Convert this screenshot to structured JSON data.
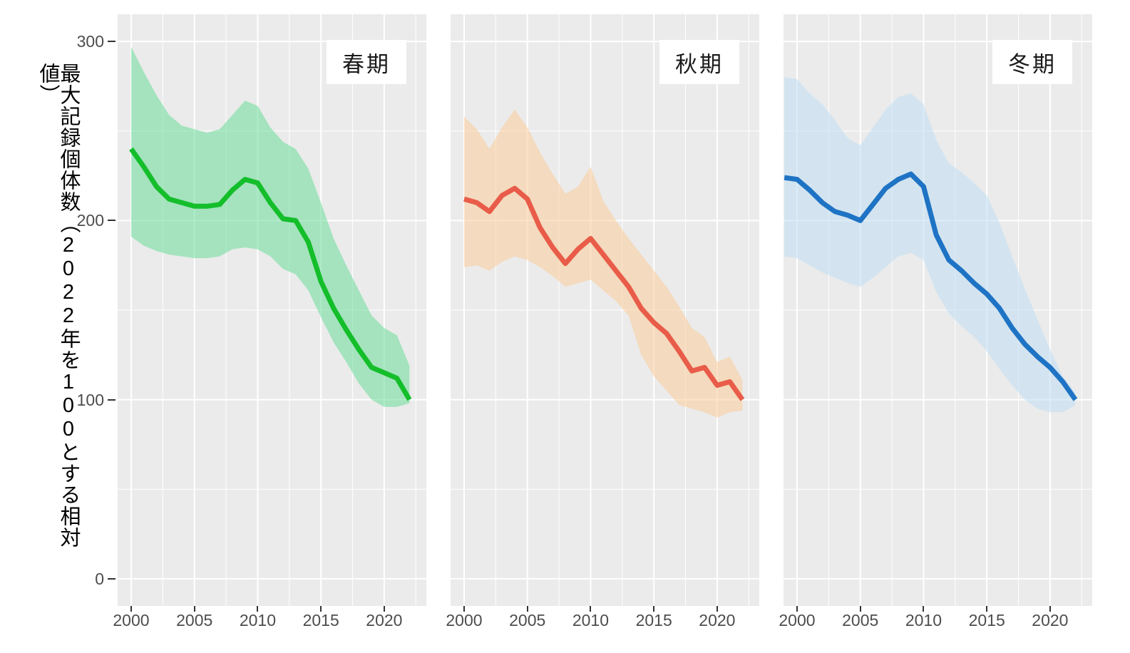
{
  "figure": {
    "y_axis_title": "最大記録個体数（2022年を100とする相対値）",
    "background_color": "#ffffff",
    "panel_background_color": "#EBEBEB",
    "gridline_color": "#ffffff",
    "tick_text_color": "#4D4D4D",
    "y_ticks": [
      {
        "label": "300",
        "value": 300
      },
      {
        "label": "200",
        "value": 200
      },
      {
        "label": "100",
        "value": 100
      },
      {
        "label": "0",
        "value": 0
      }
    ],
    "x_ticks": [
      {
        "label": "2000",
        "value": 2000
      },
      {
        "label": "2005",
        "value": 2005
      },
      {
        "label": "2010",
        "value": 2010
      },
      {
        "label": "2015",
        "value": 2015
      },
      {
        "label": "2020",
        "value": 2020
      }
    ]
  },
  "chart_data": [
    {
      "type": "line",
      "label": "春期",
      "line_color": "#14BE2B",
      "ribbon_color": "rgba(106,220,153,0.55)",
      "xlim": [
        1998.93,
        2023.33
      ],
      "ylim": [
        -15.2,
        315.2
      ],
      "x_major": [
        2000,
        2005,
        2010,
        2015,
        2020
      ],
      "x_minor": [
        2002.5,
        2007.5,
        2012.5,
        2017.5,
        2022.5
      ],
      "y_major": [
        0,
        100,
        200,
        300
      ],
      "y_minor": [
        50,
        150,
        250
      ],
      "x": [
        2000,
        2001,
        2002,
        2003,
        2004,
        2005,
        2006,
        2007,
        2008,
        2009,
        2010,
        2011,
        2012,
        2013,
        2014,
        2015,
        2016,
        2017,
        2018,
        2019,
        2020,
        2021,
        2022
      ],
      "line": [
        240,
        230,
        219,
        212,
        210,
        208,
        208,
        209,
        217,
        223,
        221,
        210,
        201,
        200,
        188,
        166,
        151,
        139,
        128,
        118,
        115,
        112,
        100
      ],
      "ribbon_upper": [
        297,
        283,
        270,
        259,
        253,
        251,
        249,
        251,
        259,
        267,
        264,
        252,
        244,
        240,
        229,
        210,
        190,
        175,
        161,
        147,
        140,
        136,
        119
      ],
      "ribbon_lower": [
        191,
        186,
        183,
        181,
        180,
        179,
        179,
        180,
        184,
        185,
        184,
        180,
        173,
        170,
        161,
        146,
        132,
        121,
        109,
        100,
        96,
        96,
        98
      ]
    },
    {
      "type": "line",
      "label": "秋期",
      "line_color": "#E85C49",
      "ribbon_color": "rgba(251,204,153,0.55)",
      "xlim": [
        1998.93,
        2023.33
      ],
      "ylim": [
        -15.2,
        315.2
      ],
      "x_major": [
        2000,
        2005,
        2010,
        2015,
        2020
      ],
      "x_minor": [
        2002.5,
        2007.5,
        2012.5,
        2017.5,
        2022.5
      ],
      "y_major": [
        0,
        100,
        200,
        300
      ],
      "y_minor": [
        50,
        150,
        250
      ],
      "x": [
        2000,
        2001,
        2002,
        2003,
        2004,
        2005,
        2006,
        2007,
        2008,
        2009,
        2010,
        2011,
        2012,
        2013,
        2014,
        2015,
        2016,
        2017,
        2018,
        2019,
        2020,
        2021,
        2022
      ],
      "line": [
        212,
        210,
        205,
        214,
        218,
        212,
        196,
        185,
        176,
        184,
        190,
        181,
        172,
        163,
        151,
        143,
        137,
        127,
        116,
        118,
        108,
        110,
        100
      ],
      "ribbon_upper": [
        258,
        251,
        240,
        252,
        262,
        252,
        238,
        226,
        215,
        219,
        230,
        211,
        200,
        190,
        181,
        172,
        163,
        152,
        140,
        135,
        121,
        124,
        111
      ],
      "ribbon_lower": [
        174,
        175,
        172,
        177,
        180,
        178,
        174,
        169,
        163,
        165,
        167,
        161,
        155,
        147,
        125,
        113,
        105,
        97,
        95,
        93,
        90,
        93,
        94
      ]
    },
    {
      "type": "line",
      "label": "冬期",
      "line_color": "#1E73C4",
      "ribbon_color": "rgba(191,222,244,0.55)",
      "xlim": [
        1998.93,
        2023.33
      ],
      "ylim": [
        -15.2,
        315.2
      ],
      "x_major": [
        2000,
        2005,
        2010,
        2015,
        2020
      ],
      "x_minor": [
        2002.5,
        2007.5,
        2012.5,
        2017.5,
        2022.5
      ],
      "y_major": [
        0,
        100,
        200,
        300
      ],
      "y_minor": [
        50,
        150,
        250
      ],
      "x": [
        1999,
        2000,
        2001,
        2002,
        2003,
        2004,
        2005,
        2006,
        2007,
        2008,
        2009,
        2010,
        2011,
        2012,
        2013,
        2014,
        2015,
        2016,
        2017,
        2018,
        2019,
        2020,
        2021,
        2022
      ],
      "line": [
        224,
        223,
        217,
        210,
        205,
        203,
        200,
        209,
        218,
        223,
        226,
        219,
        192,
        178,
        172,
        165,
        159,
        151,
        140,
        131,
        124,
        118,
        110,
        100
      ],
      "ribbon_upper": [
        280,
        279,
        271,
        265,
        256,
        246,
        242,
        252,
        262,
        269,
        271,
        265,
        245,
        232,
        227,
        221,
        214,
        199,
        180,
        162,
        145,
        128,
        113,
        104
      ],
      "ribbon_lower": [
        180,
        179,
        175,
        171,
        168,
        165,
        163,
        168,
        174,
        180,
        182,
        178,
        160,
        148,
        141,
        135,
        127,
        117,
        108,
        100,
        95,
        93,
        93,
        97
      ]
    }
  ]
}
